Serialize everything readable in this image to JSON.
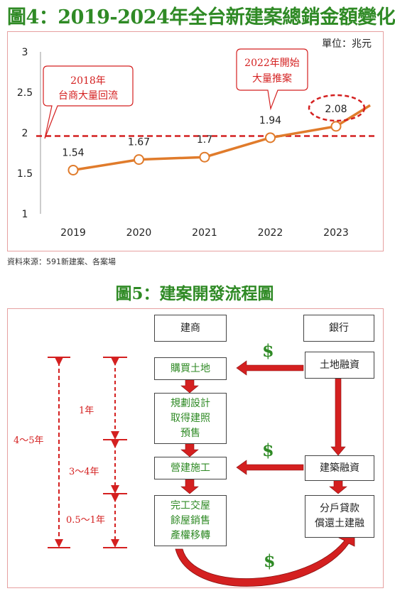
{
  "figure4": {
    "title": "圖4：2019-2024年全台新建案總銷金額變化",
    "unit": "單位：兆元",
    "source": "資料來源：591新建案、各案場",
    "annotation_2018": [
      "2018年",
      "台商大量回流"
    ],
    "annotation_2022": [
      "2022年開始",
      "大量推案"
    ]
  },
  "chart_data": {
    "type": "line",
    "categories": [
      "2019",
      "2020",
      "2021",
      "2022",
      "2023"
    ],
    "values": [
      1.54,
      1.67,
      1.7,
      1.94,
      2.08
    ],
    "data_labels": [
      "1.54",
      "1.67",
      "1.7",
      "1.94",
      "2.08"
    ],
    "ylim": [
      1,
      3
    ],
    "yticks": [
      "1",
      "1.5",
      "2",
      "2.5",
      "3"
    ],
    "reference_line": 1.96,
    "trend_end_value": 2.34,
    "series_color": "#e07b2b",
    "reference_color": "#d42020",
    "title": "",
    "xlabel": "",
    "ylabel": ""
  },
  "figure5": {
    "title": "圖5：建案開發流程圖",
    "developer_header": "建商",
    "bank_header": "銀行",
    "developer_steps": [
      "購買土地",
      "規劃設計\n取得建照\n預售",
      "營建施工",
      "完工交屋\n餘屋銷售\n產權移轉"
    ],
    "bank_steps": [
      "土地融資",
      "建築融資",
      "分戶貸款\n償還土建融"
    ],
    "dollar_sign": "$",
    "durations": [
      "4～5年",
      "1年",
      "3～4年",
      "0.5～1年"
    ],
    "accent_color": "#d42020",
    "green_color": "#2f8a25"
  }
}
